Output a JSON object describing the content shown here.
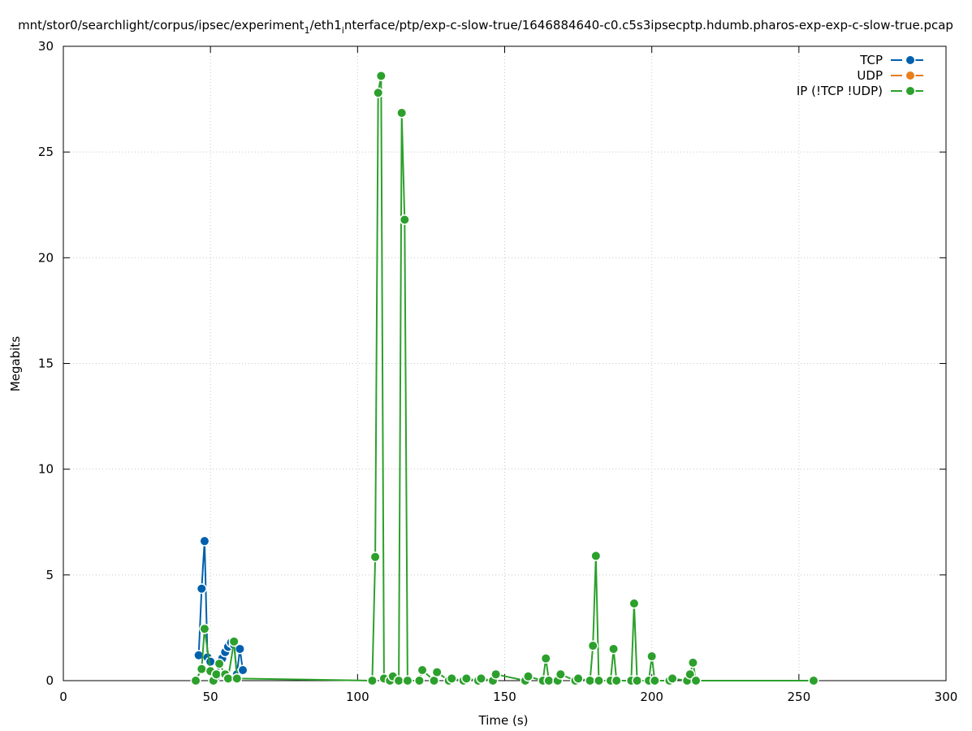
{
  "chart_data": {
    "type": "line",
    "title_main": "mnt/stor0/searchlight/corpus/ipsec/experiment",
    "title_sub1": "1",
    "title_mid": "/eth1",
    "title_sub2": "i",
    "title_tail": "nterface/ptp/exp-c-slow-true/1646884640-c0.c5s3ipsecptp.hdumb.pharos-exp-exp-c-slow-true.pcap",
    "xlabel": "Time (s)",
    "ylabel": "Megabits",
    "xlim": [
      0,
      300
    ],
    "ylim": [
      0,
      30
    ],
    "xticks": [
      0,
      50,
      100,
      150,
      200,
      250,
      300
    ],
    "yticks": [
      0,
      5,
      10,
      15,
      20,
      25,
      30
    ],
    "grid": true,
    "legend_position": "top-right",
    "series": [
      {
        "name": "TCP",
        "color": "#0060ad",
        "points": [
          [
            46,
            1.2
          ],
          [
            47,
            4.35
          ],
          [
            48,
            6.6
          ],
          [
            49,
            1.1
          ],
          [
            50,
            0.9
          ],
          [
            51,
            0.1
          ],
          [
            52,
            0.2
          ],
          [
            54,
            1.05
          ],
          [
            55,
            1.35
          ],
          [
            56,
            1.6
          ],
          [
            57,
            1.8
          ],
          [
            58,
            1.7
          ],
          [
            59,
            0.3
          ],
          [
            60,
            1.5
          ],
          [
            61,
            0.5
          ]
        ]
      },
      {
        "name": "UDP",
        "color": "#e87e1c",
        "points": []
      },
      {
        "name": "IP (!TCP  !UDP)",
        "color": "#2ca02c",
        "points": [
          [
            45,
            0.0
          ],
          [
            47,
            0.55
          ],
          [
            48,
            2.45
          ],
          [
            50,
            0.45
          ],
          [
            51,
            0.0
          ],
          [
            52,
            0.3
          ],
          [
            53,
            0.8
          ],
          [
            55,
            0.3
          ],
          [
            56,
            0.1
          ],
          [
            58,
            1.85
          ],
          [
            59,
            0.1
          ],
          [
            105,
            0.0
          ],
          [
            106,
            5.85
          ],
          [
            107,
            27.8
          ],
          [
            108,
            28.6
          ],
          [
            109,
            0.1
          ],
          [
            111,
            0.0
          ],
          [
            112,
            0.2
          ],
          [
            114,
            0.0
          ],
          [
            115,
            26.85
          ],
          [
            116,
            21.8
          ],
          [
            117,
            0.0
          ],
          [
            121,
            0.0
          ],
          [
            122,
            0.5
          ],
          [
            126,
            0.0
          ],
          [
            127,
            0.4
          ],
          [
            131,
            0.0
          ],
          [
            132,
            0.1
          ],
          [
            136,
            0.0
          ],
          [
            137,
            0.1
          ],
          [
            141,
            0.0
          ],
          [
            142,
            0.1
          ],
          [
            146,
            0.0
          ],
          [
            147,
            0.3
          ],
          [
            157,
            0.0
          ],
          [
            158,
            0.2
          ],
          [
            163,
            0.0
          ],
          [
            164,
            1.05
          ],
          [
            165,
            0.0
          ],
          [
            168,
            0.0
          ],
          [
            169,
            0.3
          ],
          [
            174,
            0.0
          ],
          [
            175,
            0.1
          ],
          [
            179,
            0.0
          ],
          [
            180,
            1.65
          ],
          [
            181,
            5.9
          ],
          [
            182,
            0.0
          ],
          [
            186,
            0.0
          ],
          [
            187,
            1.5
          ],
          [
            188,
            0.0
          ],
          [
            193,
            0.0
          ],
          [
            194,
            3.65
          ],
          [
            195,
            0.0
          ],
          [
            199,
            0.0
          ],
          [
            200,
            1.15
          ],
          [
            201,
            0.0
          ],
          [
            206,
            0.0
          ],
          [
            207,
            0.1
          ],
          [
            212,
            0.0
          ],
          [
            213,
            0.3
          ],
          [
            214,
            0.85
          ],
          [
            215,
            0.0
          ],
          [
            255,
            0.0
          ]
        ]
      }
    ]
  }
}
